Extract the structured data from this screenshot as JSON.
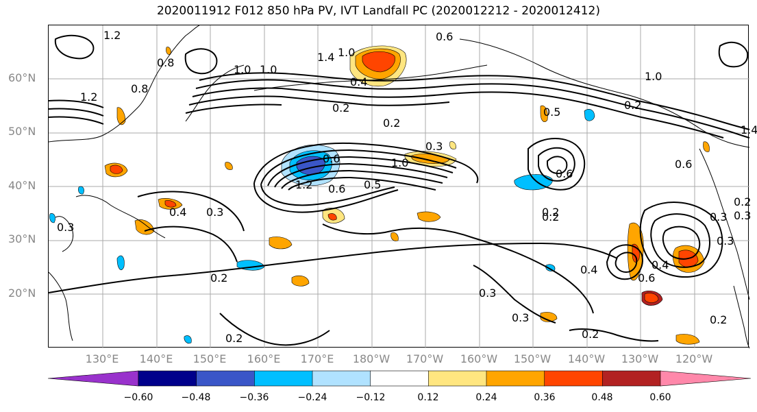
{
  "title": "2020011912 F012 850 hPa PV, IVT Landfall PC (2020012212 - 2020012412)",
  "lat_labels": [
    "60°N",
    "50°N",
    "40°N",
    "30°N",
    "20°N"
  ],
  "lon_labels": [
    "130°E",
    "140°E",
    "150°E",
    "160°E",
    "170°E",
    "180°W",
    "170°W",
    "160°W",
    "150°W",
    "140°W",
    "130°W",
    "120°W"
  ],
  "contour_labels": [
    "1.2",
    "0.8",
    "1.0",
    "1.2",
    "0.8",
    "1.0",
    "1.4",
    "1.0",
    "0.6",
    "0.4",
    "0.2",
    "0.2",
    "0.4",
    "0.3",
    "1.0",
    "0.6",
    "1.2",
    "0.6",
    "0.5",
    "0.2",
    "0.3",
    "0.3",
    "0.5",
    "0.6",
    "0.2",
    "0.4",
    "0.3",
    "0.3",
    "0.2",
    "0.2",
    "0.2",
    "0.6",
    "0.3",
    "1.0",
    "1.4",
    "0.2",
    "0.6",
    "0.3",
    "0.2",
    "0.4",
    "0.3",
    "0.2"
  ],
  "colorbar": {
    "ticks": [
      "−0.60",
      "−0.48",
      "−0.36",
      "−0.24",
      "−0.12",
      "0.12",
      "0.24",
      "0.36",
      "0.48",
      "0.60"
    ],
    "colors": [
      "#9932cc",
      "#00008b",
      "#3a56c8",
      "#00bfff",
      "#b0e2ff",
      "#ffffff",
      "#ffe680",
      "#ffa500",
      "#ff4500",
      "#b22222",
      "#ff88aa"
    ]
  }
}
